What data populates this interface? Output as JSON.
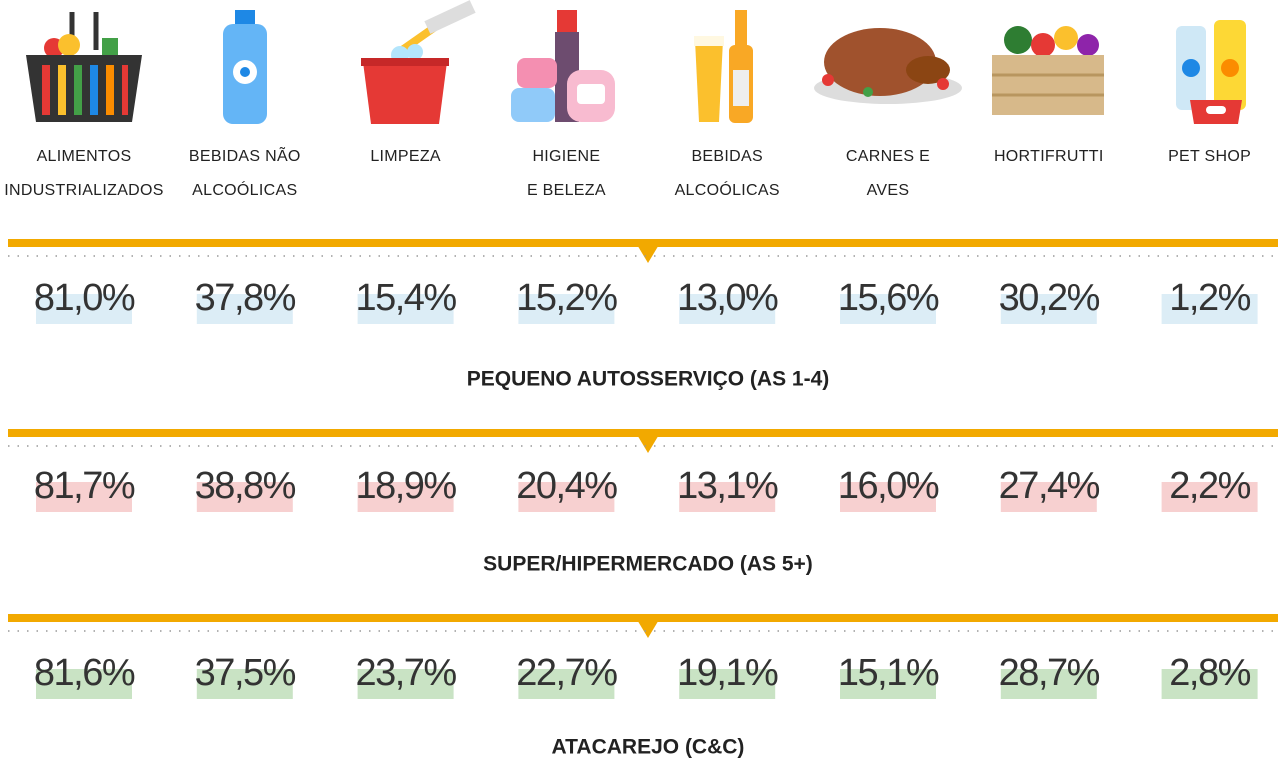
{
  "categories": [
    [
      "ALIMENTOS",
      "INDUSTRIALIZADOS"
    ],
    [
      "BEBIDAS NÃO",
      "ALCOÓLICAS"
    ],
    [
      "LIMPEZA"
    ],
    [
      "HIGIENE",
      "E BELEZA"
    ],
    [
      "BEBIDAS",
      "ALCOÓLICAS"
    ],
    [
      "CARNES E",
      "AVES"
    ],
    [
      "HORTIFRUTTI"
    ],
    [
      "PET SHOP"
    ]
  ],
  "sections": [
    {
      "values": [
        "81,0%",
        "37,8%",
        "15,4%",
        "15,2%",
        "13,0%",
        "15,6%",
        "30,2%",
        "1,2%"
      ],
      "title": "PEQUENO AUTOSSERVIÇO (AS 1-4)"
    },
    {
      "values": [
        "81,7%",
        "38,8%",
        "18,9%",
        "20,4%",
        "13,1%",
        "16,0%",
        "27,4%",
        "2,2%"
      ],
      "title": "SUPER/HIPERMERCADO (AS 5+)"
    },
    {
      "values": [
        "81,6%",
        "37,5%",
        "23,7%",
        "22,7%",
        "19,1%",
        "15,1%",
        "28,7%",
        "2,8%"
      ],
      "title": "ATACAREJO (C&C)"
    }
  ]
}
